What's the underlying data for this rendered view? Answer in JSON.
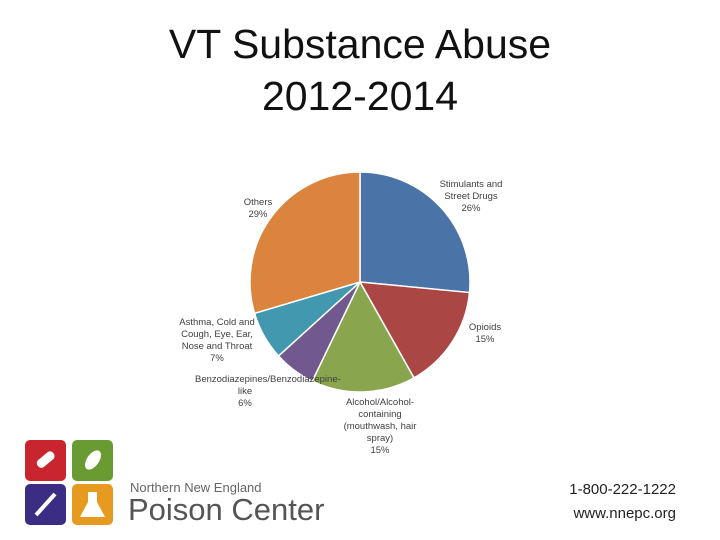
{
  "chart_data": {
    "type": "pie",
    "title": "VT Substance Abuse 2012-2014",
    "categories": [
      "Stimulants and Street Drugs",
      "Opioids",
      "Alcohol/Alcohol-containing (mouthwash, hair spray)",
      "Benzodiazepines/Benzodiazepine-like",
      "Asthma, Cold and Cough, Eye, Ear, Nose and Throat",
      "Others"
    ],
    "values": [
      26,
      15,
      15,
      6,
      7,
      29
    ],
    "value_labels": [
      "26%",
      "15%",
      "15%",
      "6%",
      "7%",
      "29%"
    ],
    "colors": [
      "#4a74a8",
      "#aa4643",
      "#89a54e",
      "#71588f",
      "#4198af",
      "#db843d"
    ]
  },
  "footer": {
    "org_line1": "Northern New England",
    "org_line2": "Poison Center",
    "phone": "1-800-222-1222",
    "website": "www.nnepc.org"
  }
}
